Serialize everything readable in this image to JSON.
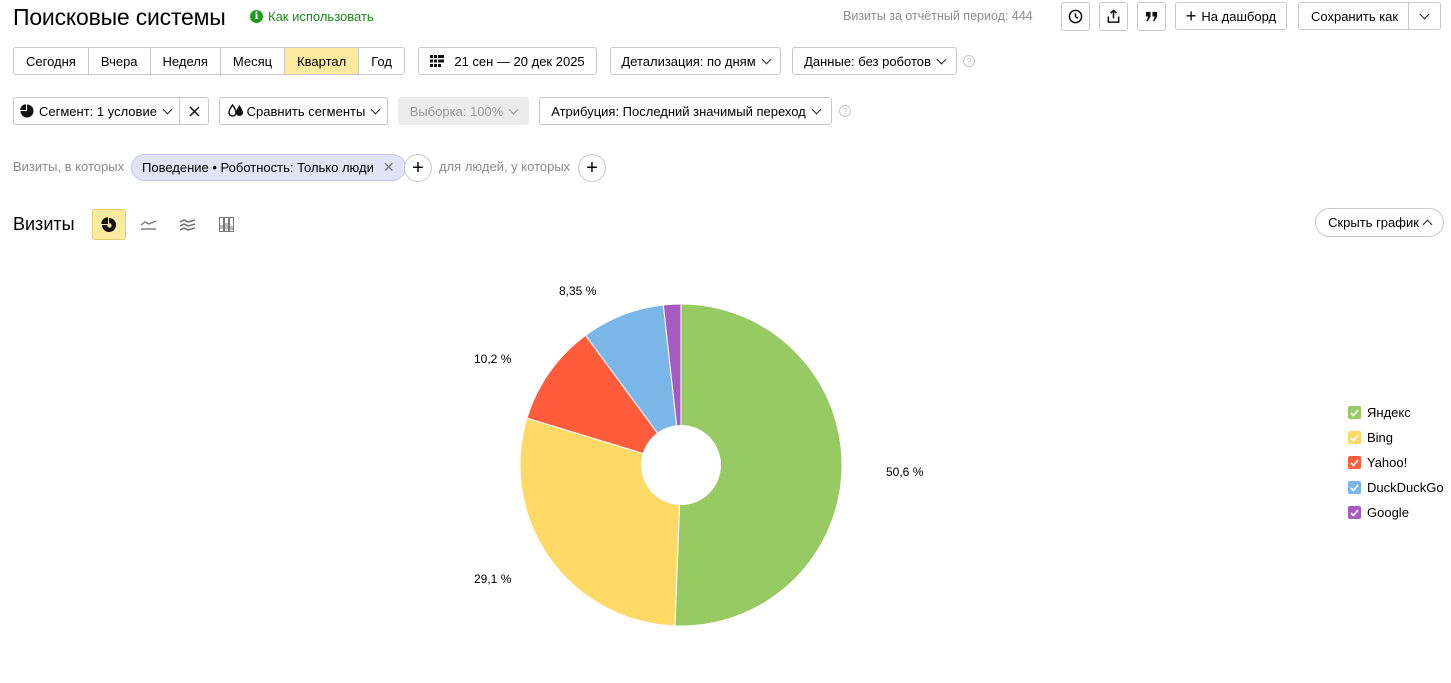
{
  "header": {
    "title": "Поисковые системы",
    "how_to_use": "Как использовать",
    "how_to_use_icon": "info-icon",
    "visits_period": "Визиты за отчётный период: 444",
    "to_dashboard": "На дашборд",
    "save_as": "Сохранить как"
  },
  "period": {
    "options": [
      "Сегодня",
      "Вчера",
      "Неделя",
      "Месяц",
      "Квартал",
      "Год"
    ],
    "selected": "Квартал",
    "date_range": "21 сен — 20 дек 2025",
    "detail": "Детализация: по дням",
    "data": "Данные: без роботов"
  },
  "segments": {
    "segment": "Сегмент: 1 условие",
    "compare": "Сравнить сегменты",
    "sample": "Выборка: 100%",
    "attribution": "Атрибуция: Последний значимый переход"
  },
  "filter": {
    "visits_label": "Визиты, в которых",
    "chip": "Поведение • Роботность: Только люди",
    "people_label": "для людей, у которых"
  },
  "chart_section": {
    "title": "Визиты",
    "hide_chart": "Скрыть график"
  },
  "chart_data": {
    "type": "pie",
    "donut": true,
    "title": "",
    "series": [
      {
        "name": "Яндекс",
        "value": 50.6,
        "label": "50,6 %",
        "color": "#97ca62"
      },
      {
        "name": "Bing",
        "value": 29.1,
        "label": "29,1 %",
        "color": "#ffd966"
      },
      {
        "name": "Yahoo!",
        "value": 10.2,
        "label": "10,2 %",
        "color": "#ff5c3b"
      },
      {
        "name": "DuckDuckGo",
        "value": 8.35,
        "label": "8,35 %",
        "color": "#7ab6e8"
      },
      {
        "name": "Google",
        "value": 1.75,
        "label": "",
        "color": "#a75ac0"
      }
    ],
    "legend_position": "right"
  }
}
